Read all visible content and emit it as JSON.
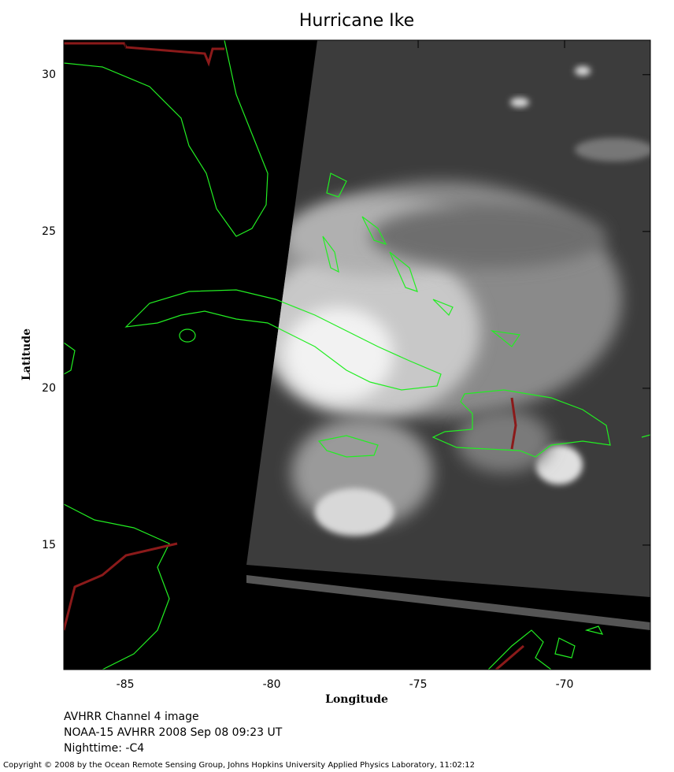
{
  "chart_data": {
    "type": "map",
    "title": "Hurricane Ike",
    "x_label": "Longitude",
    "y_label": "Latitude",
    "xlim": [
      -87.1,
      -67.07
    ],
    "ylim": [
      11.03,
      31.1
    ],
    "xticks": [
      -85,
      -80,
      -75,
      -70
    ],
    "yticks": [
      15,
      20,
      25,
      30
    ],
    "annotations": [
      "AVHRR Channel 4 image",
      "NOAA-15 AVHRR 2008 Sep 08 09:23 UT",
      "Nighttime: -C4"
    ],
    "copyright": "Copyright © 2008 by the Ocean Remote Sensing Group, Johns Hopkins University Applied Physics Laboratory, 11:02:12"
  }
}
